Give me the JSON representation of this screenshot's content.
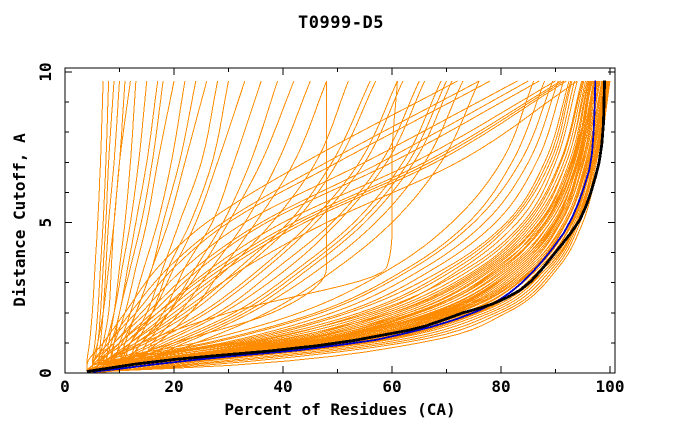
{
  "title": "T0999-D5",
  "colors": {
    "model_orange": "#ff8c00",
    "highlight_blue": "#0000cd",
    "highlight_black": "#000000",
    "frame": "#000000",
    "background": "#ffffff"
  },
  "chart_data": {
    "type": "line",
    "title": "T0999-D5",
    "xlabel": "Percent of Residues (CA)",
    "ylabel": "Distance Cutoff, A",
    "xlim": [
      0,
      101
    ],
    "ylim": [
      0,
      10.1
    ],
    "grid": false,
    "legend": "none",
    "x_axis": {
      "label": "Percent of Residues (CA)",
      "tick_values": [
        0,
        20,
        40,
        60,
        80,
        100
      ],
      "tick_labels": [
        "0",
        "20",
        "40",
        "60",
        "80",
        "100"
      ],
      "minor_tick_values": [
        10,
        30,
        50,
        70,
        90
      ]
    },
    "y_axis": {
      "label": "Distance Cutoff, A",
      "tick_values": [
        0,
        5,
        10
      ],
      "tick_labels": [
        "0",
        "5",
        "10"
      ],
      "minor_tick_values": [
        1,
        2,
        3,
        4,
        6,
        7,
        8,
        9
      ]
    },
    "anchor_cutoffs": [
      0.25,
      1,
      2,
      3.5,
      5,
      7,
      9.7
    ],
    "series": [
      {
        "name": "server-model-curves",
        "color": "#ff8c00",
        "note": "percent of CA residues under each anchor distance cutoff, one row per model",
        "anchored_percents": [
          [
            10,
            46,
            68,
            83,
            90,
            94,
            97
          ],
          [
            12,
            50,
            72,
            86,
            92,
            96,
            99
          ],
          [
            8,
            40,
            63,
            79,
            88,
            93,
            96
          ],
          [
            15,
            52,
            74,
            87,
            93,
            96.5,
            99.5
          ],
          [
            9,
            44,
            66,
            81,
            89,
            94,
            97.5
          ],
          [
            11,
            48,
            70,
            84,
            91,
            95,
            98
          ],
          [
            7,
            36,
            60,
            77,
            86,
            92,
            95.5
          ],
          [
            13,
            50,
            71,
            85,
            91.5,
            95.5,
            98.5
          ],
          [
            10,
            42,
            64,
            80,
            88.5,
            93.5,
            96.5
          ],
          [
            14,
            53,
            75,
            88,
            93.5,
            97,
            99.8
          ],
          [
            6,
            33,
            56,
            74,
            84,
            90,
            94
          ],
          [
            12,
            47,
            69,
            83,
            90.5,
            94.5,
            97.8
          ],
          [
            9,
            41,
            62,
            78,
            87,
            92.5,
            96
          ],
          [
            16,
            55,
            76,
            88.5,
            94,
            97.3,
            100
          ],
          [
            8,
            38,
            59,
            76,
            85,
            91,
            95
          ],
          [
            11,
            45,
            67,
            82,
            89.5,
            94.2,
            97.2
          ],
          [
            13,
            51,
            73,
            86.5,
            92.5,
            96.2,
            99.2
          ],
          [
            7,
            35,
            57,
            73,
            83,
            89.5,
            93.5
          ],
          [
            10,
            44,
            65,
            80.5,
            88,
            93,
            96.8
          ],
          [
            15,
            54,
            75.5,
            87.5,
            93,
            96.8,
            99.6
          ],
          [
            9,
            40,
            61,
            77.5,
            86.5,
            92,
            95.8
          ],
          [
            12,
            49,
            70.5,
            84.5,
            91,
            95.2,
            98.2
          ],
          [
            6,
            31,
            52,
            70,
            81,
            88,
            92.5
          ],
          [
            14,
            52,
            73.5,
            86,
            92,
            96,
            99
          ],
          [
            8,
            39,
            60,
            76.5,
            85.5,
            91.5,
            95.2
          ],
          [
            11,
            46,
            68,
            82.5,
            90,
            94.8,
            97.6
          ],
          [
            10,
            43,
            64.5,
            79.5,
            87.5,
            93.2,
            96.3
          ],
          [
            13,
            50.5,
            72,
            85.5,
            92,
            95.8,
            98.8
          ],
          [
            7,
            34,
            55,
            72,
            82,
            89,
            93
          ],
          [
            12,
            48,
            69.5,
            83.5,
            90.8,
            94.6,
            97.4
          ],
          [
            9,
            42,
            63,
            78.5,
            87.2,
            92.8,
            96.1
          ],
          [
            15,
            53.5,
            74.5,
            87,
            93.2,
            96.6,
            99.4
          ],
          [
            8,
            37,
            58,
            75,
            84.5,
            90.8,
            94.8
          ],
          [
            11,
            47,
            68.5,
            83,
            90.2,
            94.4,
            97
          ],
          [
            10,
            45,
            66,
            81.5,
            89,
            93.8,
            96.6
          ],
          [
            13,
            49,
            71.5,
            85,
            91.8,
            95.6,
            98.6
          ],
          [
            6,
            32,
            54,
            71,
            81.5,
            88.5,
            92.8
          ],
          [
            14,
            51,
            73,
            86.2,
            92.8,
            96.4,
            99.3
          ],
          [
            9,
            43,
            65,
            80,
            88.2,
            93.4,
            96.4
          ],
          [
            12,
            46,
            67.5,
            82,
            89.8,
            94,
            97.1
          ],
          [
            5,
            26,
            46,
            63,
            74,
            82,
            88
          ],
          [
            6,
            29,
            49,
            66,
            77,
            85,
            90.5
          ],
          [
            5,
            24,
            43,
            60,
            71,
            80,
            86
          ],
          [
            7,
            30,
            51,
            68,
            79,
            86.5,
            91.5
          ],
          [
            6,
            27,
            47,
            64,
            75,
            83.5,
            89.5
          ],
          [
            20,
            58,
            78,
            89,
            94,
            97,
            99.7
          ],
          [
            25,
            62,
            80,
            90,
            94.5,
            97.5,
            99.9
          ],
          [
            18,
            56,
            77,
            88.5,
            93.8,
            96.9,
            99.5
          ],
          [
            30,
            65,
            81,
            90.5,
            95,
            97.8,
            100
          ],
          [
            22,
            60,
            79,
            89.5,
            94.2,
            97.2,
            99.8
          ],
          [
            4,
            4.5,
            5,
            5.5,
            6,
            6.5,
            7
          ],
          [
            5,
            5.5,
            6,
            6.5,
            7,
            7.5,
            8
          ],
          [
            5,
            6,
            6.5,
            7,
            7.5,
            8,
            9
          ],
          [
            6,
            6.5,
            7,
            7.5,
            8,
            9,
            10
          ],
          [
            6,
            7,
            8,
            8.5,
            9,
            10,
            11
          ],
          [
            5,
            6,
            7,
            8,
            9,
            10,
            12
          ],
          [
            7,
            8,
            9,
            10,
            11,
            12,
            13
          ],
          [
            6,
            7.5,
            9,
            10.5,
            12,
            13.5,
            15
          ],
          [
            7,
            8.5,
            10,
            11.5,
            13,
            15,
            17
          ],
          [
            8,
            9,
            10,
            12,
            14,
            16,
            18
          ],
          [
            7,
            9,
            11,
            13,
            15,
            17,
            20
          ],
          [
            8,
            10,
            12,
            14.5,
            17,
            19.5,
            22
          ],
          [
            9,
            11,
            13,
            16,
            18,
            21,
            24
          ],
          [
            8,
            10.5,
            13,
            16,
            19,
            22,
            26
          ],
          [
            9,
            12,
            15,
            18,
            21,
            25,
            28
          ],
          [
            10,
            13,
            16,
            19,
            23,
            27,
            30
          ],
          [
            9,
            12,
            16,
            20,
            24,
            28,
            33
          ],
          [
            10,
            14,
            18,
            22,
            27,
            31,
            36
          ],
          [
            11,
            15,
            19,
            24,
            29,
            34,
            39
          ],
          [
            10,
            14,
            19,
            25,
            30,
            36,
            42
          ],
          [
            12,
            16,
            21,
            27,
            33,
            39,
            45
          ],
          [
            11,
            17,
            23,
            29,
            35,
            42,
            48
          ],
          [
            6,
            12,
            20,
            30,
            38,
            46,
            52
          ],
          [
            7,
            14,
            23,
            33,
            42,
            50,
            57
          ],
          [
            8,
            16,
            26,
            37,
            46,
            55,
            62
          ],
          [
            7,
            15,
            25,
            36,
            45,
            54,
            61
          ],
          [
            9,
            18,
            29,
            41,
            50,
            59,
            66
          ],
          [
            8,
            17,
            28,
            39,
            49,
            58,
            65
          ],
          [
            10,
            20,
            32,
            44,
            54,
            63,
            70
          ],
          [
            9,
            19,
            31,
            43,
            53,
            62,
            69
          ],
          [
            11,
            22,
            34,
            47,
            57,
            66,
            73
          ],
          [
            6,
            13,
            22,
            32,
            41,
            49,
            56
          ],
          [
            12,
            24,
            37,
            50,
            60,
            69,
            76
          ],
          [
            10,
            21,
            33,
            45,
            55,
            64,
            71
          ],
          [
            5,
            9,
            14,
            22,
            33,
            55,
            83
          ],
          [
            6,
            10,
            16,
            25,
            37,
            60,
            87
          ],
          [
            5,
            8,
            13,
            20,
            30,
            50,
            78
          ],
          [
            6,
            11,
            17,
            27,
            40,
            64,
            90
          ],
          [
            7,
            12,
            19,
            30,
            44,
            68,
            92
          ],
          [
            5,
            9,
            15,
            24,
            36,
            58,
            85
          ],
          [
            6,
            10,
            17,
            28,
            42,
            66,
            91
          ],
          [
            7,
            13,
            21,
            33,
            48,
            72,
            94
          ],
          [
            4,
            7,
            11,
            17,
            26,
            44,
            72
          ],
          [
            5,
            8,
            12,
            19,
            29,
            48,
            76
          ],
          [
            6,
            11,
            18,
            29,
            43,
            67,
            91.5
          ],
          [
            8,
            20,
            38,
            48,
            48,
            48,
            48
          ],
          [
            6,
            14,
            30,
            59,
            60,
            60,
            61
          ]
        ]
      },
      {
        "name": "highlight-model-blue",
        "color": "#0000cd",
        "points": [
          [
            5,
            0.04
          ],
          [
            10,
            0.14
          ],
          [
            16,
            0.28
          ],
          [
            24,
            0.44
          ],
          [
            32,
            0.58
          ],
          [
            42,
            0.74
          ],
          [
            50,
            0.92
          ],
          [
            57,
            1.1
          ],
          [
            62,
            1.3
          ],
          [
            67,
            1.52
          ],
          [
            72,
            1.8
          ],
          [
            76,
            2.08
          ],
          [
            79,
            2.35
          ],
          [
            81.5,
            2.65
          ],
          [
            83.5,
            2.95
          ],
          [
            85.5,
            3.3
          ],
          [
            87.5,
            3.7
          ],
          [
            89.5,
            4.15
          ],
          [
            91.5,
            4.65
          ],
          [
            93,
            5.15
          ],
          [
            94.2,
            5.65
          ],
          [
            95.2,
            6.15
          ],
          [
            96.2,
            6.75
          ],
          [
            96.7,
            7.3
          ],
          [
            97,
            8.0
          ],
          [
            97.2,
            8.8
          ],
          [
            97.3,
            9.72
          ]
        ]
      },
      {
        "name": "highlight-model-black",
        "color": "#000000",
        "points": [
          [
            4,
            0.05
          ],
          [
            8,
            0.16
          ],
          [
            13,
            0.3
          ],
          [
            20,
            0.45
          ],
          [
            28,
            0.58
          ],
          [
            37,
            0.72
          ],
          [
            46,
            0.9
          ],
          [
            53,
            1.08
          ],
          [
            58,
            1.25
          ],
          [
            63,
            1.42
          ],
          [
            66,
            1.55
          ],
          [
            70,
            1.8
          ],
          [
            73,
            2.0
          ],
          [
            76,
            2.15
          ],
          [
            78.5,
            2.3
          ],
          [
            81,
            2.5
          ],
          [
            83.5,
            2.75
          ],
          [
            85.5,
            3.05
          ],
          [
            87.5,
            3.45
          ],
          [
            89.5,
            3.9
          ],
          [
            91.5,
            4.35
          ],
          [
            93,
            4.7
          ],
          [
            94.5,
            5.1
          ],
          [
            95.5,
            5.5
          ],
          [
            96.5,
            6.0
          ],
          [
            97.3,
            6.5
          ],
          [
            98,
            7.0
          ],
          [
            98.5,
            7.6
          ],
          [
            98.8,
            8.3
          ],
          [
            98.9,
            9.0
          ],
          [
            99,
            9.72
          ]
        ]
      }
    ]
  }
}
